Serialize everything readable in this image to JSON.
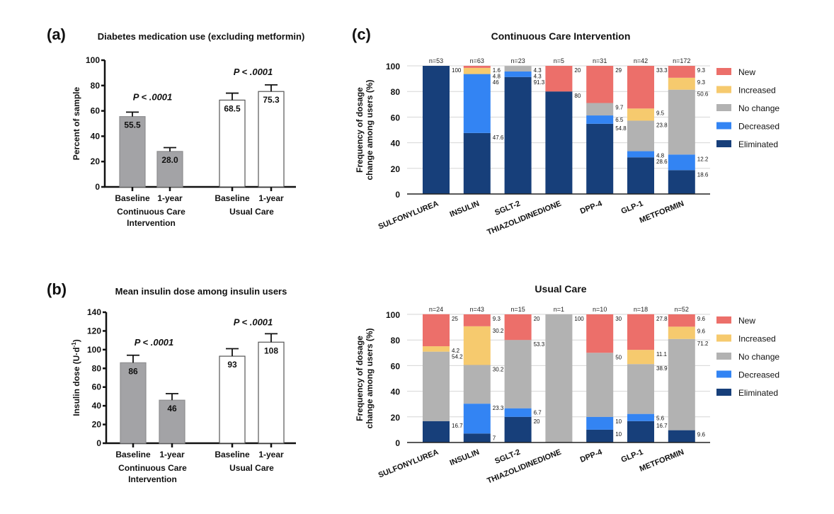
{
  "figure": {
    "panel_a_letter": "(a)",
    "panel_b_letter": "(b)",
    "panel_c_letter": "(c)"
  },
  "chart_data": [
    {
      "id": "a",
      "type": "bar",
      "title": "Diabetes medication use (excluding metformin)",
      "ylabel": "Percent of sample",
      "ylim": [
        0,
        100
      ],
      "yticks": [
        0,
        20,
        40,
        60,
        80,
        100
      ],
      "groups": [
        {
          "label_lines": [
            "Continuous Care",
            "Intervention"
          ],
          "p_value": "P < .0001",
          "bars": [
            {
              "label": "Baseline",
              "value": 55.5,
              "value_label": "55.5",
              "error_top": 59,
              "fill": "#a3a3a6"
            },
            {
              "label": "1-year",
              "value": 28.0,
              "value_label": "28.0",
              "error_top": 31,
              "fill": "#a3a3a6"
            }
          ]
        },
        {
          "label_lines": [
            "Usual Care"
          ],
          "p_value": "P < .0001",
          "bars": [
            {
              "label": "Baseline",
              "value": 68.5,
              "value_label": "68.5",
              "error_top": 74,
              "fill": "#ffffff"
            },
            {
              "label": "1-year",
              "value": 75.3,
              "value_label": "75.3",
              "error_top": 80.5,
              "fill": "#ffffff"
            }
          ]
        }
      ]
    },
    {
      "id": "b",
      "type": "bar",
      "title": "Mean insulin dose among insulin users",
      "ylabel": "Insulin dose (U·d",
      "ylabel_sup": "-1",
      "ylabel_end": ")",
      "ylim": [
        0,
        140
      ],
      "yticks": [
        0,
        20,
        40,
        60,
        80,
        100,
        120,
        140
      ],
      "groups": [
        {
          "label_lines": [
            "Continuous Care",
            "Intervention"
          ],
          "p_value": "P < .0001",
          "bars": [
            {
              "label": "Baseline",
              "value": 86,
              "value_label": "86",
              "error_top": 94,
              "fill": "#a3a3a6"
            },
            {
              "label": "1-year",
              "value": 46,
              "value_label": "46",
              "error_top": 53,
              "fill": "#a3a3a6"
            }
          ]
        },
        {
          "label_lines": [
            "Usual Care"
          ],
          "p_value": "P < .0001",
          "bars": [
            {
              "label": "Baseline",
              "value": 93,
              "value_label": "93",
              "error_top": 101,
              "fill": "#ffffff"
            },
            {
              "label": "1-year",
              "value": 108,
              "value_label": "108",
              "error_top": 117,
              "fill": "#ffffff"
            }
          ]
        }
      ]
    },
    {
      "id": "c1",
      "type": "bar",
      "stacked": true,
      "title": "Continuous Care Intervention",
      "ylabel_lines": [
        "Frequency of dosage",
        "change among users (%)"
      ],
      "ylim": [
        0,
        100
      ],
      "yticks": [
        0,
        20,
        40,
        60,
        80,
        100
      ],
      "grid": true,
      "legend_position": "right",
      "categories": [
        "SULFONYLUREA",
        "INSULIN",
        "SGLT-2",
        "THIAZOLIDINEDIONE",
        "DPP-4",
        "GLP-1",
        "METFORMIN"
      ],
      "n_labels": [
        "n=53",
        "n=63",
        "n=23",
        "n=5",
        "n=31",
        "n=42",
        "n=172"
      ],
      "series": [
        {
          "name": "Eliminated",
          "color": "#173f7a",
          "values": [
            100,
            47.6,
            91.3,
            80,
            54.8,
            28.6,
            18.6
          ],
          "labels": [
            "100",
            "47.6",
            "91.3",
            "80",
            "54.8",
            "28.6",
            "18.6"
          ]
        },
        {
          "name": "Decreased",
          "color": "#3384f3",
          "values": [
            0,
            46,
            4.3,
            0,
            6.5,
            4.8,
            12.2
          ],
          "labels": [
            "",
            "46",
            "4.3",
            "",
            "6.5",
            "4.8",
            "12.2"
          ]
        },
        {
          "name": "No change",
          "color": "#b2b2b2",
          "values": [
            0,
            0,
            4.3,
            0,
            9.7,
            23.8,
            50.6
          ],
          "labels": [
            "",
            "",
            "4.3",
            "",
            "9.7",
            "23.8",
            "50.6"
          ]
        },
        {
          "name": "Increased",
          "color": "#f6ca6e",
          "values": [
            0,
            4.8,
            0,
            0,
            0,
            9.5,
            9.3
          ],
          "labels": [
            "",
            "4.8",
            "",
            "",
            "",
            "9.5",
            "9.3"
          ]
        },
        {
          "name": "New",
          "color": "#ec6f6a",
          "values": [
            0,
            1.6,
            0,
            20,
            29,
            33.3,
            9.3
          ],
          "labels": [
            "",
            "1.6",
            "",
            "20",
            "29",
            "33.3",
            "9.3"
          ]
        }
      ]
    },
    {
      "id": "c2",
      "type": "bar",
      "stacked": true,
      "title": "Usual Care",
      "ylabel_lines": [
        "Frequency of dosage",
        "change among users (%)"
      ],
      "ylim": [
        0,
        100
      ],
      "yticks": [
        0,
        20,
        40,
        60,
        80,
        100
      ],
      "grid": true,
      "legend_position": "right",
      "categories": [
        "SULFONYLUREA",
        "INSULIN",
        "SGLT-2",
        "THIAZOLIDINEDIONE",
        "DPP-4",
        "GLP-1",
        "METFORMIN"
      ],
      "n_labels": [
        "n=24",
        "n=43",
        "n=15",
        "n=1",
        "n=10",
        "n=18",
        "n=52"
      ],
      "series": [
        {
          "name": "Eliminated",
          "color": "#173f7a",
          "values": [
            16.7,
            7,
            20,
            0,
            10,
            16.7,
            9.6
          ],
          "labels": [
            "16.7",
            "7",
            "20",
            "",
            "10",
            "16.7",
            "9.6"
          ]
        },
        {
          "name": "Decreased",
          "color": "#3384f3",
          "values": [
            0,
            23.3,
            6.7,
            0,
            10,
            5.6,
            0
          ],
          "labels": [
            "",
            "23.3",
            "6.7",
            "",
            "10",
            "5.6",
            ""
          ]
        },
        {
          "name": "No change",
          "color": "#b2b2b2",
          "values": [
            54.2,
            30.2,
            53.3,
            100,
            50,
            38.9,
            71.2
          ],
          "labels": [
            "54.2",
            "30.2",
            "53.3",
            "100",
            "50",
            "38.9",
            "71.2"
          ]
        },
        {
          "name": "Increased",
          "color": "#f6ca6e",
          "values": [
            4.2,
            30.2,
            0,
            0,
            0,
            11.1,
            9.6
          ],
          "labels": [
            "4.2",
            "30.2",
            "",
            "",
            "",
            "11.1",
            "9.6"
          ]
        },
        {
          "name": "New",
          "color": "#ec6f6a",
          "values": [
            25,
            9.3,
            20,
            0,
            30,
            27.8,
            9.6
          ],
          "labels": [
            "25",
            "9.3",
            "20",
            "",
            "30",
            "27.8",
            "9.6"
          ]
        }
      ]
    }
  ]
}
